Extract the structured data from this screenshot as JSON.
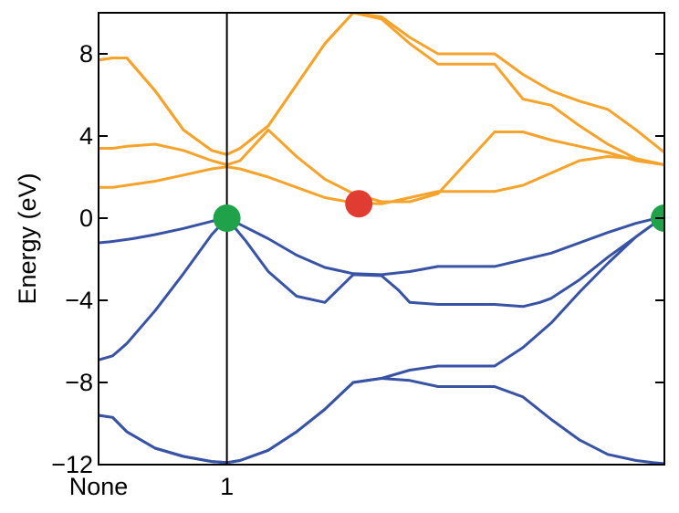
{
  "chart_data": {
    "type": "line",
    "title": "",
    "xlabel": "",
    "ylabel": "Energy (eV)",
    "xlim": [
      0,
      1.0
    ],
    "ylim": [
      -12,
      10
    ],
    "yticks": [
      -12,
      -8,
      -4,
      0,
      4,
      8
    ],
    "ytick_labels": [
      "−12",
      "−8",
      "−4",
      "0",
      "4",
      "8"
    ],
    "xticks": [
      {
        "x": 0.0,
        "label": "None"
      },
      {
        "x": 0.2268,
        "label": "1"
      }
    ],
    "vlines": [
      0.2268
    ],
    "grid": false,
    "legend": "none",
    "colors": {
      "valence": "#3953a4",
      "conduction": "#f6a32c",
      "vbm": "#1fa24a",
      "cbm": "#e03c31"
    },
    "series": [
      {
        "band": "valence",
        "x": [
          0.0,
          0.02,
          0.06,
          0.1,
          0.15,
          0.2,
          0.2268,
          0.25,
          0.3,
          0.35,
          0.4,
          0.45,
          0.5,
          0.55,
          0.6,
          0.7,
          0.8,
          0.85,
          0.9,
          0.95,
          0.98,
          1.0
        ],
        "y": [
          -1.2,
          -1.15,
          -1.0,
          -0.8,
          -0.5,
          -0.15,
          0.0,
          -0.3,
          -1.0,
          -1.8,
          -2.4,
          -2.7,
          -2.75,
          -2.6,
          -2.35,
          -2.35,
          -1.7,
          -1.2,
          -0.7,
          -0.25,
          -0.05,
          0.0
        ]
      },
      {
        "band": "valence",
        "x": [
          0.0,
          0.025,
          0.05,
          0.1,
          0.15,
          0.2,
          0.2268,
          0.26,
          0.3,
          0.35,
          0.4,
          0.45,
          0.5,
          0.53,
          0.55,
          0.6,
          0.7,
          0.75,
          0.78,
          0.8,
          0.85,
          0.9,
          0.95,
          0.98,
          1.0
        ],
        "y": [
          -6.9,
          -6.7,
          -6.1,
          -4.5,
          -2.7,
          -0.8,
          0.0,
          -1.1,
          -2.6,
          -3.8,
          -4.1,
          -2.75,
          -2.8,
          -3.5,
          -4.1,
          -4.2,
          -4.2,
          -4.3,
          -4.1,
          -3.9,
          -3.0,
          -1.9,
          -0.9,
          -0.3,
          0.0
        ]
      },
      {
        "band": "valence",
        "x": [
          0.0,
          0.025,
          0.05,
          0.1,
          0.15,
          0.2,
          0.2268,
          0.25,
          0.3,
          0.35,
          0.4,
          0.45,
          0.5,
          0.55,
          0.6,
          0.7,
          0.75,
          0.8,
          0.85,
          0.9,
          0.95,
          0.98,
          1.0
        ],
        "y": [
          -9.6,
          -9.7,
          -10.4,
          -11.2,
          -11.6,
          -11.85,
          -11.9,
          -11.8,
          -11.3,
          -10.4,
          -9.3,
          -8.0,
          -7.8,
          -7.4,
          -7.2,
          -7.2,
          -6.3,
          -5.1,
          -3.6,
          -2.2,
          -0.9,
          -0.3,
          0.0
        ]
      },
      {
        "band": "valence",
        "x": [
          0.0,
          0.025,
          0.05,
          0.1,
          0.15,
          0.2,
          0.2268,
          0.25,
          0.3,
          0.35,
          0.4,
          0.45,
          0.5,
          0.55,
          0.6,
          0.7,
          0.75,
          0.8,
          0.85,
          0.9,
          0.95,
          0.98,
          1.0
        ],
        "y": [
          -9.6,
          -9.7,
          -10.4,
          -11.2,
          -11.6,
          -11.85,
          -11.9,
          -11.8,
          -11.3,
          -10.4,
          -9.3,
          -8.0,
          -7.8,
          -7.9,
          -8.2,
          -8.2,
          -8.7,
          -9.8,
          -10.8,
          -11.5,
          -11.8,
          -11.9,
          -11.95
        ]
      },
      {
        "band": "conduction",
        "x": [
          0.0,
          0.025,
          0.05,
          0.1,
          0.15,
          0.2,
          0.2268,
          0.25,
          0.3,
          0.35,
          0.4,
          0.45,
          0.5,
          0.55,
          0.6,
          0.7,
          0.75,
          0.8,
          0.85,
          0.9,
          0.95,
          1.0
        ],
        "y": [
          7.7,
          7.8,
          7.8,
          6.2,
          4.3,
          3.3,
          3.1,
          3.4,
          4.5,
          6.5,
          8.5,
          10.0,
          9.7,
          8.5,
          7.5,
          7.5,
          5.8,
          5.5,
          4.5,
          3.6,
          2.9,
          2.6
        ]
      },
      {
        "band": "conduction",
        "x": [
          0.0,
          0.025,
          0.05,
          0.1,
          0.15,
          0.2,
          0.2268,
          0.25,
          0.3,
          0.35,
          0.4,
          0.45,
          0.5,
          0.55,
          0.6,
          0.7,
          0.75,
          0.8,
          0.85,
          0.9,
          0.95,
          1.0
        ],
        "y": [
          7.7,
          7.8,
          7.8,
          6.2,
          4.3,
          3.3,
          3.1,
          3.4,
          4.5,
          6.5,
          8.5,
          10.0,
          9.8,
          8.8,
          8.0,
          8.0,
          7.0,
          6.2,
          5.7,
          5.3,
          4.3,
          3.2
        ]
      },
      {
        "band": "conduction",
        "x": [
          0.0,
          0.025,
          0.05,
          0.1,
          0.15,
          0.2,
          0.2268,
          0.25,
          0.3,
          0.35,
          0.4,
          0.45,
          0.5,
          0.55,
          0.6,
          0.7,
          0.75,
          0.8,
          0.85,
          0.9,
          0.95,
          1.0
        ],
        "y": [
          3.4,
          3.4,
          3.5,
          3.6,
          3.3,
          2.8,
          2.6,
          2.8,
          4.3,
          3.0,
          1.9,
          1.2,
          0.8,
          0.8,
          1.2,
          4.2,
          4.2,
          3.8,
          3.5,
          3.2,
          2.8,
          2.6
        ]
      },
      {
        "band": "conduction",
        "x": [
          0.0,
          0.025,
          0.05,
          0.1,
          0.15,
          0.2,
          0.2268,
          0.25,
          0.3,
          0.35,
          0.4,
          0.45,
          0.5,
          0.55,
          0.6,
          0.7,
          0.75,
          0.8,
          0.85,
          0.9,
          0.95,
          1.0
        ],
        "y": [
          1.5,
          1.5,
          1.6,
          1.8,
          2.1,
          2.4,
          2.5,
          2.4,
          2.0,
          1.5,
          1.0,
          0.75,
          0.7,
          1.0,
          1.3,
          1.3,
          1.6,
          2.2,
          2.8,
          3.0,
          2.9,
          2.6
        ]
      }
    ],
    "markers": [
      {
        "label": "VBM",
        "x": 0.2268,
        "y": 0.0,
        "color": "#1fa24a"
      },
      {
        "label": "VBM",
        "x": 1.0,
        "y": 0.0,
        "color": "#1fa24a"
      },
      {
        "label": "CBM",
        "x": 0.46,
        "y": 0.7,
        "color": "#e03c31"
      }
    ]
  }
}
